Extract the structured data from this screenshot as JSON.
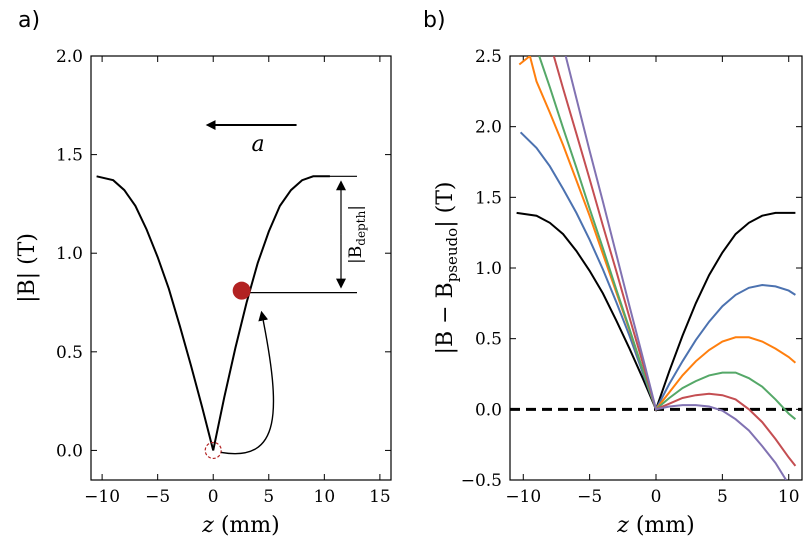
{
  "chart_data": [
    {
      "type": "line",
      "panel_label": "a)",
      "xlabel_var": "z",
      "xlabel_unit": "(mm)",
      "ylabel": "|B| (T)",
      "xlim": [
        -11,
        16
      ],
      "ylim": [
        -0.15,
        2.0
      ],
      "xticks": [
        -10,
        -5,
        0,
        5,
        10,
        15
      ],
      "xtick_labels": [
        "−10",
        "−5",
        "0",
        "5",
        "10",
        "15"
      ],
      "yticks": [
        0.0,
        0.5,
        1.0,
        1.5,
        2.0
      ],
      "ytick_labels": [
        "0.0",
        "0.5",
        "1.0",
        "1.5",
        "2.0"
      ],
      "series": [
        {
          "name": "|B|",
          "color": "#000000",
          "x": [
            -10.5,
            -9,
            -8,
            -7,
            -6,
            -5,
            -4,
            -3,
            -2,
            -1,
            0,
            1,
            2,
            3,
            4,
            5,
            6,
            7,
            8,
            9,
            10,
            10.5
          ],
          "y": [
            1.39,
            1.37,
            1.32,
            1.24,
            1.12,
            0.98,
            0.82,
            0.63,
            0.43,
            0.22,
            0.0,
            0.27,
            0.52,
            0.75,
            0.95,
            1.11,
            1.24,
            1.32,
            1.37,
            1.39,
            1.39,
            1.39
          ]
        }
      ],
      "particle": {
        "x": 3.1,
        "y": 0.8,
        "color": "#b22222"
      },
      "start_marker": {
        "x": 0.0,
        "y": 0.0,
        "color": "#b22222"
      },
      "depth_annotation": {
        "label_main": "|B",
        "label_sub": "depth",
        "label_end": "|",
        "y_top": 1.39,
        "y_bottom": 0.8,
        "x": 11.5
      },
      "accel_arrow": {
        "label": "a",
        "x_from": 7.5,
        "x_to": -0.5,
        "y": 1.65
      }
    },
    {
      "type": "line",
      "panel_label": "b)",
      "xlabel_var": "z",
      "xlabel_unit": "(mm)",
      "ylabel_main": "|B − B",
      "ylabel_sub": "pseudo",
      "ylabel_end": "| (T)",
      "xlim": [
        -11,
        11
      ],
      "ylim": [
        -0.5,
        2.5
      ],
      "xticks": [
        -10,
        -5,
        0,
        5,
        10
      ],
      "xtick_labels": [
        "−10",
        "−5",
        "0",
        "5",
        "10"
      ],
      "yticks": [
        -0.5,
        0.0,
        0.5,
        1.0,
        1.5,
        2.0,
        2.5
      ],
      "ytick_labels": [
        "−0.5",
        "0.0",
        "0.5",
        "1.0",
        "1.5",
        "2.0",
        "2.5"
      ],
      "reference_line": {
        "y": 0.0,
        "style": "dashed",
        "color": "#000000"
      },
      "series": [
        {
          "name": "black",
          "color": "#000000",
          "x": [
            -10.5,
            -9,
            -8,
            -7,
            -6,
            -5,
            -4,
            -3,
            -2,
            -1,
            0,
            1,
            2,
            3,
            4,
            5,
            6,
            7,
            8,
            9,
            10,
            10.5
          ],
          "y": [
            1.39,
            1.37,
            1.32,
            1.24,
            1.12,
            0.98,
            0.82,
            0.63,
            0.43,
            0.22,
            0.0,
            0.27,
            0.52,
            0.75,
            0.95,
            1.11,
            1.24,
            1.32,
            1.37,
            1.39,
            1.39,
            1.39
          ]
        },
        {
          "name": "blue",
          "color": "#4c72b0",
          "x": [
            -10.2,
            -9,
            -8,
            -7,
            -6,
            -5,
            -4,
            -3,
            -2,
            -1,
            0,
            1,
            2,
            3,
            4,
            5,
            6,
            7,
            8,
            9,
            10,
            10.5
          ],
          "y": [
            1.96,
            1.85,
            1.72,
            1.56,
            1.39,
            1.2,
            0.99,
            0.76,
            0.52,
            0.26,
            0.0,
            0.18,
            0.34,
            0.49,
            0.62,
            0.73,
            0.81,
            0.86,
            0.88,
            0.87,
            0.84,
            0.81
          ]
        },
        {
          "name": "orange",
          "color": "#ff7f0e",
          "x": [
            -10.3,
            -9.5,
            -9,
            -8,
            -7,
            -6,
            -5,
            -4,
            -3,
            -2,
            -1,
            0,
            1,
            2,
            3,
            4,
            5,
            6,
            7,
            8,
            9,
            10,
            10.5
          ],
          "y": [
            2.44,
            2.5,
            2.32,
            2.1,
            1.87,
            1.62,
            1.37,
            1.1,
            0.83,
            0.56,
            0.28,
            0.0,
            0.12,
            0.24,
            0.34,
            0.42,
            0.48,
            0.51,
            0.51,
            0.48,
            0.43,
            0.37,
            0.33
          ]
        },
        {
          "name": "green",
          "color": "#55a868",
          "x": [
            -8.8,
            -8,
            -7,
            -6,
            -5,
            -4,
            -3,
            -2,
            -1,
            0,
            1,
            2,
            3,
            4,
            5,
            6,
            7,
            8,
            9,
            10,
            10.5
          ],
          "y": [
            2.5,
            2.28,
            1.99,
            1.71,
            1.42,
            1.14,
            0.85,
            0.57,
            0.28,
            0.0,
            0.08,
            0.15,
            0.2,
            0.24,
            0.26,
            0.26,
            0.22,
            0.16,
            0.07,
            -0.03,
            -0.07
          ]
        },
        {
          "name": "red",
          "color": "#c44e52",
          "x": [
            -7.7,
            -7,
            -6,
            -5,
            -4,
            -3,
            -2,
            -1,
            0,
            1,
            2,
            3,
            4,
            5,
            6,
            7,
            8,
            9,
            10,
            10.5
          ],
          "y": [
            2.5,
            2.27,
            1.95,
            1.63,
            1.3,
            0.98,
            0.65,
            0.33,
            0.0,
            0.04,
            0.08,
            0.1,
            0.11,
            0.1,
            0.07,
            0.0,
            -0.09,
            -0.21,
            -0.34,
            -0.4
          ]
        },
        {
          "name": "purple",
          "color": "#8172b2",
          "x": [
            -6.8,
            -6,
            -5,
            -4,
            -3,
            -2,
            -1,
            0,
            1,
            2,
            3,
            4,
            5,
            6,
            7,
            8,
            9,
            9.8
          ],
          "y": [
            2.5,
            2.2,
            1.83,
            1.47,
            1.1,
            0.73,
            0.37,
            0.0,
            0.02,
            0.03,
            0.03,
            0.02,
            -0.01,
            -0.07,
            -0.15,
            -0.26,
            -0.38,
            -0.5
          ]
        }
      ]
    }
  ]
}
